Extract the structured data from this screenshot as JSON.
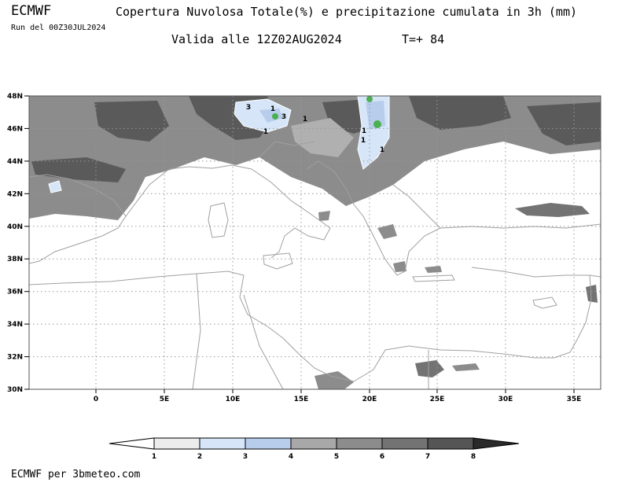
{
  "header": {
    "model": "ECMWF",
    "run": "Run del 00Z30JUL2024",
    "title": "Copertura Nuvolosa Totale(%) e precipitazione cumulata in 3h (mm)",
    "valid": "Valida alle 12Z02AUG2024",
    "step": "T=+ 84"
  },
  "map": {
    "lat_labels": [
      "48N",
      "46N",
      "44N",
      "42N",
      "40N",
      "38N",
      "36N",
      "34N",
      "32N",
      "30N"
    ],
    "lon_labels": [
      "0",
      "5E",
      "10E",
      "15E",
      "20E",
      "25E",
      "30E",
      "35E"
    ],
    "precip_labels": [
      "3",
      "1",
      "3",
      "1",
      "1",
      "1",
      "1",
      "1"
    ]
  },
  "legend": {
    "values": [
      "1",
      "2",
      "3",
      "4",
      "5",
      "6",
      "7",
      "8"
    ],
    "colors": [
      "#ffffff",
      "#ececec",
      "#d6e6f8",
      "#b8cdec",
      "#a8a8a8",
      "#8c8c8c",
      "#737373",
      "#555555",
      "#2a2a2a"
    ]
  },
  "footer": {
    "credit": "ECMWF per 3bmeteo.com"
  }
}
